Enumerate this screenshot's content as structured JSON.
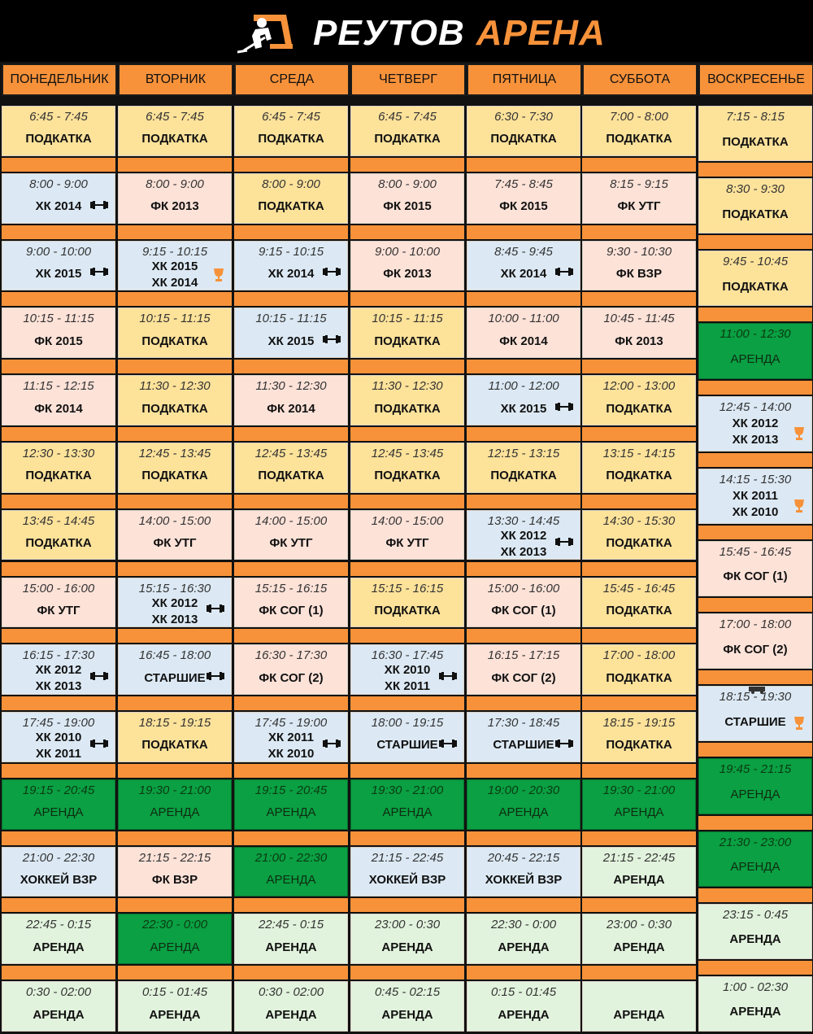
{
  "header": {
    "title_part1": "РЕУТОВ",
    "title_part2": "АРЕНА"
  },
  "colors": {
    "orange": "#f7923a",
    "yellow": "#fde29a",
    "pink": "#fde2d8",
    "blue": "#dce9f4",
    "green": "#0aa043",
    "light_green": "#e2f3dd"
  },
  "days": [
    {
      "name": "ПОНЕДЕЛЬНИК",
      "sessions": [
        {
          "time": "6:45 - 7:45",
          "label": "ПОДКАТКА",
          "type": "yellow"
        },
        {
          "time": "8:00 - 9:00",
          "label": "ХК 2014",
          "type": "blue",
          "icon": "dumbbell-icon"
        },
        {
          "time": "9:00 - 10:00",
          "label": "ХК 2015",
          "type": "blue",
          "icon": "dumbbell-icon"
        },
        {
          "time": "10:15 - 11:15",
          "label": "ФК 2015",
          "type": "pink"
        },
        {
          "time": "11:15 - 12:15",
          "label": "ФК 2014",
          "type": "pink"
        },
        {
          "time": "12:30 - 13:30",
          "label": "ПОДКАТКА",
          "type": "yellow"
        },
        {
          "time": "13:45 - 14:45",
          "label": "ПОДКАТКА",
          "type": "yellow"
        },
        {
          "time": "15:00 - 16:00",
          "label": "ФК УТГ",
          "type": "pink"
        },
        {
          "time": "16:15 - 17:30",
          "label": "ХК 2012",
          "label2": "ХК 2013",
          "type": "blue",
          "icon": "dumbbell-icon"
        },
        {
          "time": "17:45 - 19:00",
          "label": "ХК 2010",
          "label2": "ХК 2011",
          "type": "blue",
          "icon": "dumbbell-icon"
        },
        {
          "time": "19:15 - 20:45",
          "label": "АРЕНДА",
          "type": "green"
        },
        {
          "time": "21:00 - 22:30",
          "label": "ХОККЕЙ ВЗР",
          "type": "blue"
        },
        {
          "time": "22:45 - 0:15",
          "label": "АРЕНДА",
          "type": "light_green"
        },
        {
          "time": "0:30 - 02:00",
          "label": "АРЕНДА",
          "type": "light_green"
        }
      ]
    },
    {
      "name": "ВТОРНИК",
      "sessions": [
        {
          "time": "6:45 - 7:45",
          "label": "ПОДКАТКА",
          "type": "yellow"
        },
        {
          "time": "8:00 - 9:00",
          "label": "ФК 2013",
          "type": "pink"
        },
        {
          "time": "9:15 - 10:15",
          "label": "ХК 2015",
          "label2": "ХК 2014",
          "type": "blue",
          "icon": "trophy-icon"
        },
        {
          "time": "10:15 - 11:15",
          "label": "ПОДКАТКА",
          "type": "yellow"
        },
        {
          "time": "11:30 - 12:30",
          "label": "ПОДКАТКА",
          "type": "yellow"
        },
        {
          "time": "12:45 - 13:45",
          "label": "ПОДКАТКА",
          "type": "yellow"
        },
        {
          "time": "14:00 - 15:00",
          "label": "ФК УТГ",
          "type": "pink"
        },
        {
          "time": "15:15 - 16:30",
          "label": "ХК 2012",
          "label2": "ХК 2013",
          "type": "blue",
          "icon": "dumbbell-icon"
        },
        {
          "time": "16:45 - 18:00",
          "label": "СТАРШИЕ",
          "type": "blue",
          "icon": "dumbbell-icon"
        },
        {
          "time": "18:15 - 19:15",
          "label": "ПОДКАТКА",
          "type": "yellow"
        },
        {
          "time": "19:30 - 21:00",
          "label": "АРЕНДА",
          "type": "green"
        },
        {
          "time": "21:15 - 22:15",
          "label": "ФК ВЗР",
          "type": "pink"
        },
        {
          "time": "22:30 - 0:00",
          "label": "АРЕНДА",
          "type": "green"
        },
        {
          "time": "0:15 - 01:45",
          "label": "АРЕНДА",
          "type": "light_green"
        }
      ]
    },
    {
      "name": "СРЕДА",
      "sessions": [
        {
          "time": "6:45 - 7:45",
          "label": "ПОДКАТКА",
          "type": "yellow"
        },
        {
          "time": "8:00 - 9:00",
          "label": "ПОДКАТКА",
          "type": "yellow"
        },
        {
          "time": "9:15 - 10:15",
          "label": "ХК 2014",
          "type": "blue",
          "icon": "dumbbell-icon"
        },
        {
          "time": "10:15 - 11:15",
          "label": "ХК 2015",
          "type": "blue",
          "icon": "dumbbell-icon"
        },
        {
          "time": "11:30 - 12:30",
          "label": "ФК 2014",
          "type": "pink"
        },
        {
          "time": "12:45 - 13:45",
          "label": "ПОДКАТКА",
          "type": "yellow"
        },
        {
          "time": "14:00 - 15:00",
          "label": "ФК УТГ",
          "type": "pink"
        },
        {
          "time": "15:15 - 16:15",
          "label": "ФК СОГ (1)",
          "type": "pink"
        },
        {
          "time": "16:30 - 17:30",
          "label": "ФК СОГ (2)",
          "type": "pink"
        },
        {
          "time": "17:45 - 19:00",
          "label": "ХК 2011",
          "label2": "ХК 2010",
          "type": "blue",
          "icon": "dumbbell-icon"
        },
        {
          "time": "19:15 - 20:45",
          "label": "АРЕНДА",
          "type": "green"
        },
        {
          "time": "21:00 - 22:30",
          "label": "АРЕНДА",
          "type": "green"
        },
        {
          "time": "22:45 - 0:15",
          "label": "АРЕНДА",
          "type": "light_green"
        },
        {
          "time": "0:30 - 02:00",
          "label": "АРЕНДА",
          "type": "light_green"
        }
      ]
    },
    {
      "name": "ЧЕТВЕРГ",
      "sessions": [
        {
          "time": "6:45 - 7:45",
          "label": "ПОДКАТКА",
          "type": "yellow"
        },
        {
          "time": "8:00 - 9:00",
          "label": "ФК 2015",
          "type": "pink"
        },
        {
          "time": "9:00 - 10:00",
          "label": "ФК 2013",
          "type": "pink"
        },
        {
          "time": "10:15 - 11:15",
          "label": "ПОДКАТКА",
          "type": "yellow"
        },
        {
          "time": "11:30 - 12:30",
          "label": "ПОДКАТКА",
          "type": "yellow"
        },
        {
          "time": "12:45 - 13:45",
          "label": "ПОДКАТКА",
          "type": "yellow"
        },
        {
          "time": "14:00 - 15:00",
          "label": "ФК УТГ",
          "type": "pink"
        },
        {
          "time": "15:15 - 16:15",
          "label": "ПОДКАТКА",
          "type": "yellow"
        },
        {
          "time": "16:30 - 17:45",
          "label": "ХК 2010",
          "label2": "ХК 2011",
          "type": "blue",
          "icon": "dumbbell-icon"
        },
        {
          "time": "18:00 - 19:15",
          "label": "СТАРШИЕ",
          "type": "blue",
          "icon": "dumbbell-icon"
        },
        {
          "time": "19:30 - 21:00",
          "label": "АРЕНДА",
          "type": "green"
        },
        {
          "time": "21:15 - 22:45",
          "label": "ХОККЕЙ ВЗР",
          "type": "blue"
        },
        {
          "time": "23:00 - 0:30",
          "label": "АРЕНДА",
          "type": "light_green"
        },
        {
          "time": "0:45 - 02:15",
          "label": "АРЕНДА",
          "type": "light_green"
        }
      ]
    },
    {
      "name": "ПЯТНИЦА",
      "sessions": [
        {
          "time": "6:30 - 7:30",
          "label": "ПОДКАТКА",
          "type": "yellow"
        },
        {
          "time": "7:45 - 8:45",
          "label": "ФК 2015",
          "type": "pink"
        },
        {
          "time": "8:45 - 9:45",
          "label": "ХК 2014",
          "type": "blue",
          "icon": "dumbbell-icon"
        },
        {
          "time": "10:00 - 11:00",
          "label": "ФК 2014",
          "type": "pink"
        },
        {
          "time": "11:00 - 12:00",
          "label": "ХК 2015",
          "type": "blue",
          "icon": "dumbbell-icon"
        },
        {
          "time": "12:15 - 13:15",
          "label": "ПОДКАТКА",
          "type": "yellow"
        },
        {
          "time": "13:30 - 14:45",
          "label": "ХК 2012",
          "label2": "ХК 2013",
          "type": "blue",
          "icon": "dumbbell-icon"
        },
        {
          "time": "15:00 - 16:00",
          "label": "ФК СОГ (1)",
          "type": "pink"
        },
        {
          "time": "16:15 - 17:15",
          "label": "ФК СОГ (2)",
          "type": "pink"
        },
        {
          "time": "17:30 - 18:45",
          "label": "СТАРШИЕ",
          "type": "blue",
          "icon": "dumbbell-icon"
        },
        {
          "time": "19:00 - 20:30",
          "label": "АРЕНДА",
          "type": "green"
        },
        {
          "time": "20:45 - 22:15",
          "label": "ХОККЕЙ ВЗР",
          "type": "blue"
        },
        {
          "time": "22:30 - 0:00",
          "label": "АРЕНДА",
          "type": "light_green"
        },
        {
          "time": "0:15 - 01:45",
          "label": "АРЕНДА",
          "type": "light_green"
        }
      ]
    },
    {
      "name": "СУББОТА",
      "sessions": [
        {
          "time": "7:00 - 8:00",
          "label": "ПОДКАТКА",
          "type": "yellow"
        },
        {
          "time": "8:15 - 9:15",
          "label": "ФК УТГ",
          "type": "pink"
        },
        {
          "time": "9:30 - 10:30",
          "label": "ФК ВЗР",
          "type": "pink"
        },
        {
          "time": "10:45 - 11:45",
          "label": "ФК 2013",
          "type": "pink"
        },
        {
          "time": "12:00 - 13:00",
          "label": "ПОДКАТКА",
          "type": "yellow"
        },
        {
          "time": "13:15 - 14:15",
          "label": "ПОДКАТКА",
          "type": "yellow"
        },
        {
          "time": "14:30 - 15:30",
          "label": "ПОДКАТКА",
          "type": "yellow"
        },
        {
          "time": "15:45 - 16:45",
          "label": "ПОДКАТКА",
          "type": "yellow"
        },
        {
          "time": "17:00 - 18:00",
          "label": "ПОДКАТКА",
          "type": "yellow"
        },
        {
          "time": "18:15 - 19:15",
          "label": "ПОДКАТКА",
          "type": "yellow"
        },
        {
          "time": "19:30 - 21:00",
          "label": "АРЕНДА",
          "type": "green"
        },
        {
          "time": "21:15 - 22:45",
          "label": "АРЕНДА",
          "type": "light_green"
        },
        {
          "time": "23:00 - 0:30",
          "label": "АРЕНДА",
          "type": "light_green"
        },
        {
          "time": "",
          "label": "АРЕНДА",
          "type": "light_green"
        }
      ]
    },
    {
      "name": "ВОСКРЕСЕНЬЕ",
      "sessions": [
        {
          "time": "7:15 - 8:15",
          "label": "ПОДКАТКА",
          "type": "yellow"
        },
        {
          "time": "8:30 - 9:30",
          "label": "ПОДКАТКА",
          "type": "yellow"
        },
        {
          "time": "9:45 - 10:45",
          "label": "ПОДКАТКА",
          "type": "yellow"
        },
        {
          "time": "11:00 - 12:30",
          "label": "АРЕНДА",
          "type": "green"
        },
        {
          "time": "12:45 - 14:00",
          "label": "ХК 2012",
          "label2": "ХК 2013",
          "type": "blue",
          "icon": "trophy-icon"
        },
        {
          "time": "14:15 - 15:30",
          "label": "ХК 2011",
          "label2": "ХК 2010",
          "type": "blue",
          "icon": "trophy-icon"
        },
        {
          "time": "15:45 - 16:45",
          "label": "ФК СОГ (1)",
          "type": "pink"
        },
        {
          "time": "17:00 - 18:00",
          "label": "ФК СОГ (2)",
          "type": "pink"
        },
        {
          "time": "18:15 - 19:30",
          "label": "СТАРШИЕ",
          "type": "blue",
          "icon": "trophy-icon",
          "icon2": "bus-icon"
        },
        {
          "time": "19:45 - 21:15",
          "label": "АРЕНДА",
          "type": "green"
        },
        {
          "time": "21:30 - 23:00",
          "label": "АРЕНДА",
          "type": "green"
        },
        {
          "time": "23:15 - 0:45",
          "label": "АРЕНДА",
          "type": "light_green"
        },
        {
          "time": "1:00 - 02:30",
          "label": "АРЕНДА",
          "type": "light_green"
        }
      ]
    }
  ]
}
